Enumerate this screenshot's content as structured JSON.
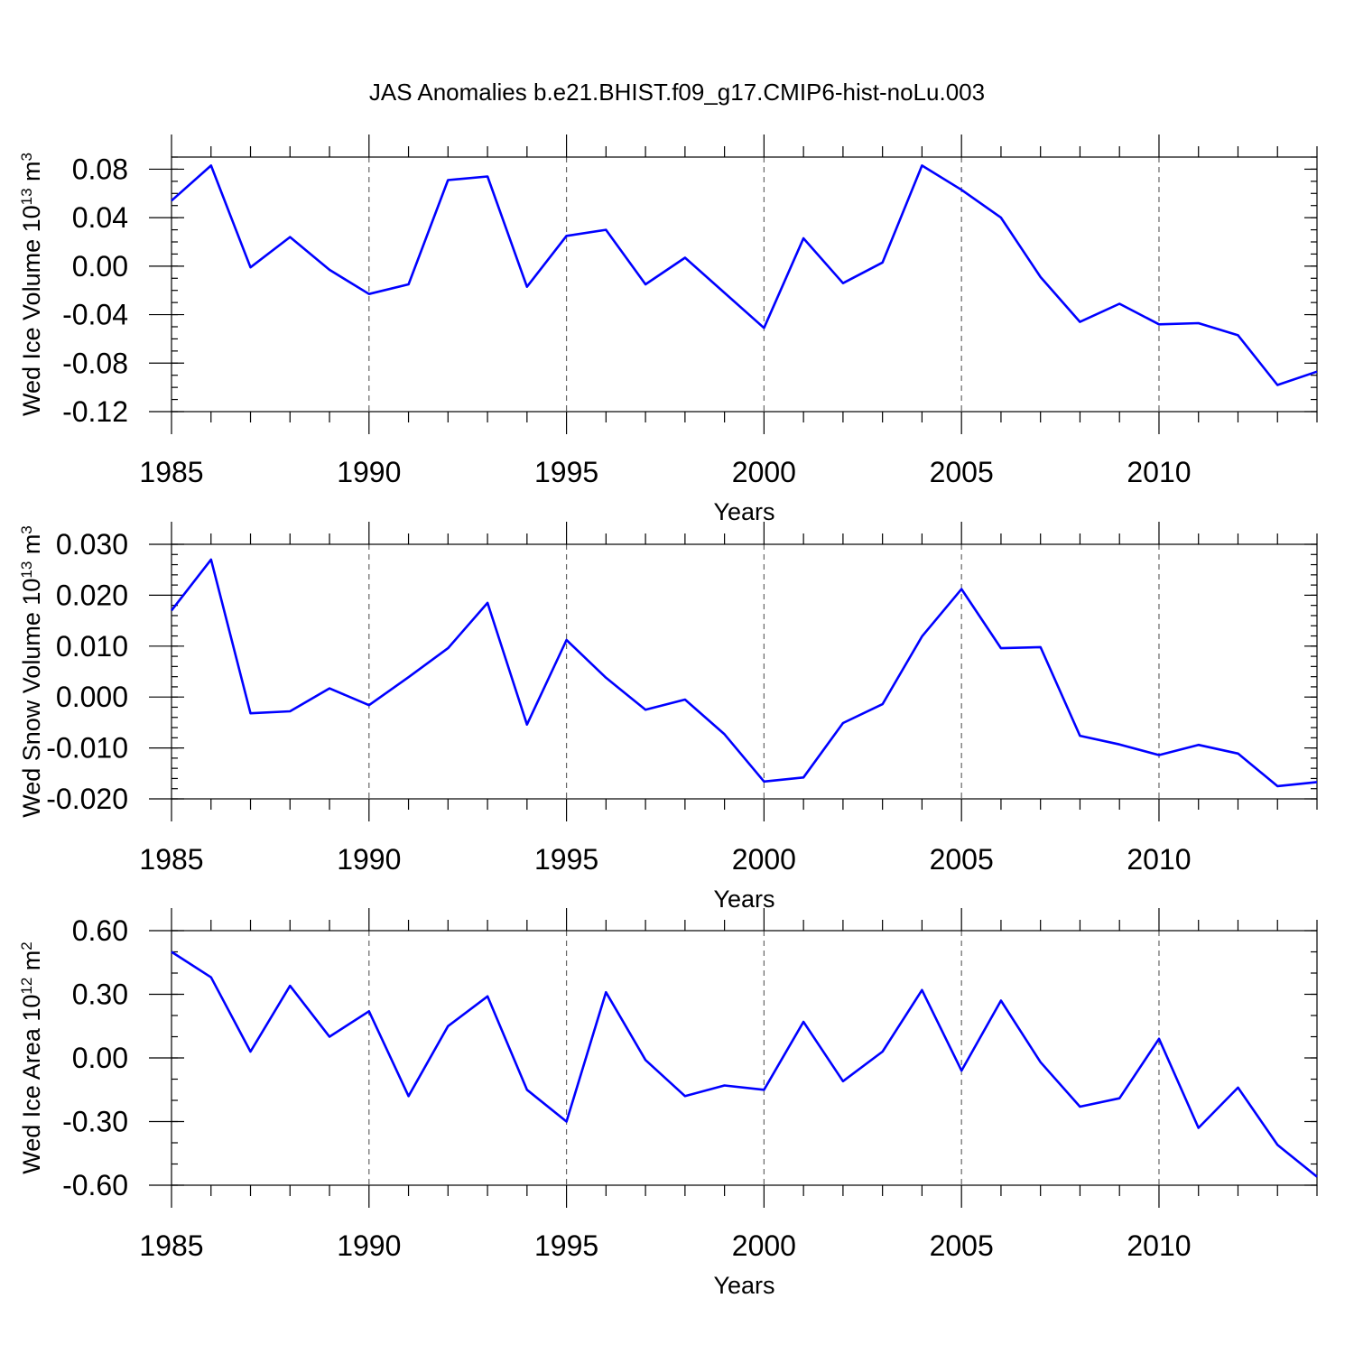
{
  "figure": {
    "title": "JAS Anomalies b.e21.BHIST.f09_g17.CMIP6-hist-noLu.003"
  },
  "chart_data": [
    {
      "type": "line",
      "ylabel": "Wed Ice Volume 10",
      "ylabel_exp": "13",
      "ylabel_unit": " m",
      "ylabel_unit_exp": "3",
      "xlabel": "Years",
      "xlim": [
        1985,
        2014
      ],
      "ylim": [
        -0.12,
        0.09
      ],
      "x_ticks": [
        1985,
        1990,
        1995,
        2000,
        2005,
        2010
      ],
      "x_tick_labels": [
        "1985",
        "1990",
        "1995",
        "2000",
        "2005",
        "2010"
      ],
      "y_ticks": [
        0.08,
        0.04,
        0.0,
        -0.04,
        -0.08,
        -0.12
      ],
      "y_tick_labels": [
        "0.08",
        "0.04",
        "0.00",
        "-0.04",
        "-0.08",
        "-0.12"
      ],
      "y_minor_step": 0.01,
      "grid_x": [
        1990,
        1995,
        2000,
        2005,
        2010
      ],
      "color": "#0000ff",
      "x": [
        1985,
        1986,
        1987,
        1988,
        1989,
        1990,
        1991,
        1992,
        1993,
        1994,
        1995,
        1996,
        1997,
        1998,
        1999,
        2000,
        2001,
        2002,
        2003,
        2004,
        2005,
        2006,
        2007,
        2008,
        2009,
        2010,
        2011,
        2012,
        2013,
        2014
      ],
      "values": [
        0.054,
        0.083,
        -0.001,
        0.024,
        -0.003,
        -0.023,
        -0.015,
        0.071,
        0.074,
        -0.017,
        0.025,
        0.03,
        -0.015,
        0.007,
        -0.022,
        -0.051,
        0.023,
        -0.014,
        0.003,
        0.083,
        0.063,
        0.04,
        -0.009,
        -0.046,
        -0.031,
        -0.048,
        -0.047,
        -0.057,
        -0.098,
        -0.087
      ]
    },
    {
      "type": "line",
      "ylabel": "Wed Snow Volume 10",
      "ylabel_exp": "13",
      "ylabel_unit": " m",
      "ylabel_unit_exp": "3",
      "xlabel": "Years",
      "xlim": [
        1985,
        2014
      ],
      "ylim": [
        -0.02,
        0.03
      ],
      "x_ticks": [
        1985,
        1990,
        1995,
        2000,
        2005,
        2010
      ],
      "x_tick_labels": [
        "1985",
        "1990",
        "1995",
        "2000",
        "2005",
        "2010"
      ],
      "y_ticks": [
        0.03,
        0.02,
        0.01,
        0.0,
        -0.01,
        -0.02
      ],
      "y_tick_labels": [
        "0.030",
        "0.020",
        "0.010",
        "0.000",
        "-0.010",
        "-0.020"
      ],
      "y_minor_step": 0.002,
      "grid_x": [
        1990,
        1995,
        2000,
        2005,
        2010
      ],
      "color": "#0000ff",
      "x": [
        1985,
        1986,
        1987,
        1988,
        1989,
        1990,
        1991,
        1992,
        1993,
        1994,
        1995,
        1996,
        1997,
        1998,
        1999,
        2000,
        2001,
        2002,
        2003,
        2004,
        2005,
        2006,
        2007,
        2008,
        2009,
        2010,
        2011,
        2012,
        2013,
        2014
      ],
      "values": [
        0.017,
        0.027,
        -0.0032,
        -0.0028,
        0.0017,
        -0.0016,
        0.0039,
        0.0096,
        0.0185,
        -0.0054,
        0.0112,
        0.0038,
        -0.0025,
        -0.0005,
        -0.0073,
        -0.0166,
        -0.0158,
        -0.0051,
        -0.0014,
        0.0119,
        0.0212,
        0.0096,
        0.0098,
        -0.0076,
        -0.0093,
        -0.0114,
        -0.0094,
        -0.0111,
        -0.0175,
        -0.0167
      ]
    },
    {
      "type": "line",
      "ylabel": "Wed Ice Area 10",
      "ylabel_exp": "12",
      "ylabel_unit": " m",
      "ylabel_unit_exp": "2",
      "xlabel": "Years",
      "xlim": [
        1985,
        2014
      ],
      "ylim": [
        -0.6,
        0.6
      ],
      "x_ticks": [
        1985,
        1990,
        1995,
        2000,
        2005,
        2010
      ],
      "x_tick_labels": [
        "1985",
        "1990",
        "1995",
        "2000",
        "2005",
        "2010"
      ],
      "y_ticks": [
        0.6,
        0.3,
        0.0,
        -0.3,
        -0.6
      ],
      "y_tick_labels": [
        "0.60",
        "0.30",
        "0.00",
        "-0.30",
        "-0.60"
      ],
      "y_minor_step": 0.1,
      "grid_x": [
        1990,
        1995,
        2000,
        2005,
        2010
      ],
      "color": "#0000ff",
      "x": [
        1985,
        1986,
        1987,
        1988,
        1989,
        1990,
        1991,
        1992,
        1993,
        1994,
        1995,
        1996,
        1997,
        1998,
        1999,
        2000,
        2001,
        2002,
        2003,
        2004,
        2005,
        2006,
        2007,
        2008,
        2009,
        2010,
        2011,
        2012,
        2013,
        2014
      ],
      "values": [
        0.5,
        0.38,
        0.03,
        0.34,
        0.1,
        0.22,
        -0.18,
        0.15,
        0.29,
        -0.15,
        -0.3,
        0.31,
        -0.01,
        -0.18,
        -0.13,
        -0.15,
        0.17,
        -0.11,
        0.03,
        0.32,
        -0.06,
        0.27,
        -0.02,
        -0.23,
        -0.19,
        0.09,
        -0.33,
        -0.14,
        -0.41,
        -0.56
      ]
    }
  ]
}
